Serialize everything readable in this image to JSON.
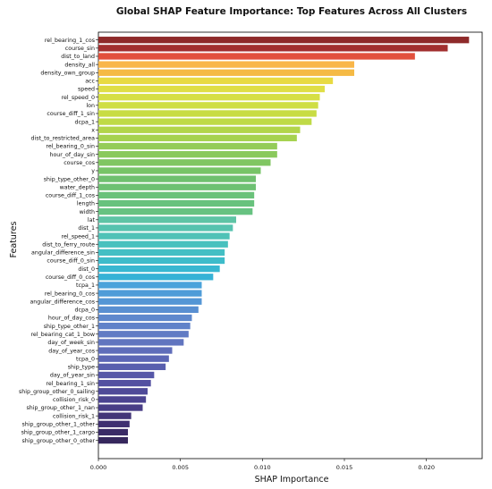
{
  "chart_data": {
    "type": "bar",
    "orientation": "horizontal",
    "title": "Global SHAP Feature Importance: Top Features Across All Clusters",
    "xlabel": "SHAP Importance",
    "ylabel": "Features",
    "xlim": [
      0,
      0.0234
    ],
    "xticks": [
      "0.000",
      "0.005",
      "0.010",
      "0.015",
      "0.020"
    ],
    "xtick_values": [
      0,
      0.005,
      0.01,
      0.015,
      0.02
    ],
    "grid": false,
    "legend": "none",
    "categories": [
      "rel_bearing_1_cos",
      "course_sin",
      "dist_to_land",
      "density_all",
      "density_own_group",
      "acc",
      "speed",
      "rel_speed_0",
      "lon",
      "course_diff_1_sin",
      "dcpa_1",
      "x",
      "dist_to_restricted_area",
      "rel_bearing_0_sin",
      "hour_of_day_sin",
      "course_cos",
      "y",
      "ship_type_other_0",
      "water_depth",
      "course_diff_1_cos",
      "length",
      "width",
      "lat",
      "dist_1",
      "rel_speed_1",
      "dist_to_ferry_route",
      "angular_difference_sin",
      "course_diff_0_sin",
      "dist_0",
      "course_diff_0_cos",
      "tcpa_1",
      "rel_bearing_0_cos",
      "angular_difference_cos",
      "dcpa_0",
      "hour_of_day_cos",
      "ship_type_other_1",
      "rel_bearing_cat_1_bow",
      "day_of_week_sin",
      "day_of_year_cos",
      "tcpa_0",
      "ship_type",
      "day_of_year_sin",
      "rel_bearing_1_sin",
      "ship_group_other_0_sailing",
      "collision_risk_0",
      "ship_group_other_1_nan",
      "collision_risk_1",
      "ship_group_other_1_other",
      "ship_group_other_1_cargo",
      "ship_group_other_0_other"
    ],
    "values": [
      0.0226,
      0.0213,
      0.0193,
      0.0156,
      0.0156,
      0.0143,
      0.0138,
      0.0135,
      0.0134,
      0.0133,
      0.013,
      0.0123,
      0.0121,
      0.0109,
      0.0109,
      0.0105,
      0.0099,
      0.0096,
      0.0096,
      0.0095,
      0.0095,
      0.0094,
      0.0084,
      0.0082,
      0.008,
      0.0079,
      0.0077,
      0.0077,
      0.0074,
      0.007,
      0.0063,
      0.0063,
      0.0063,
      0.0061,
      0.0057,
      0.0056,
      0.0055,
      0.0052,
      0.0045,
      0.0043,
      0.0041,
      0.0034,
      0.0032,
      0.003,
      0.0029,
      0.0027,
      0.002,
      0.0019,
      0.0018,
      0.0018
    ],
    "colors": [
      "#8e2a2a",
      "#a22f2f",
      "#e2503d",
      "#f9b649",
      "#f5ba45",
      "#e8da42",
      "#dfde45",
      "#d6df44",
      "#cfde44",
      "#c8dc44",
      "#bfda46",
      "#b2d54a",
      "#a6d24f",
      "#94cc58",
      "#8ac95c",
      "#80c662",
      "#77c467",
      "#6fc06f",
      "#6ec173",
      "#6ac27a",
      "#68c27d",
      "#67c281",
      "#5ec4a5",
      "#56c3af",
      "#4fc2b7",
      "#48c1be",
      "#43bfc4",
      "#3dbcca",
      "#38b7d1",
      "#36b2d6",
      "#4aa3db",
      "#4f9cd8",
      "#5496d5",
      "#598fd1",
      "#5e88cd",
      "#6082c9",
      "#617bc4",
      "#6175bf",
      "#5f6dba",
      "#5c66b5",
      "#595fae",
      "#5657a8",
      "#5350a1",
      "#4f4a98",
      "#4b4390",
      "#483d86",
      "#433678",
      "#3f3070",
      "#3a2b66",
      "#36275d"
    ]
  }
}
